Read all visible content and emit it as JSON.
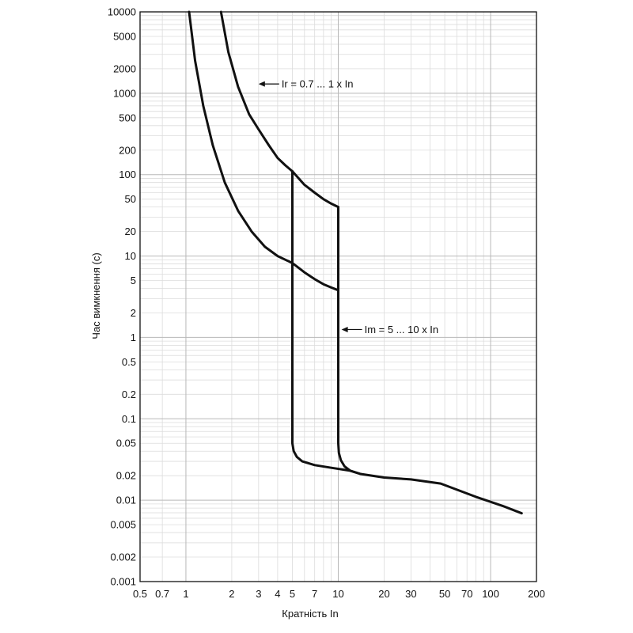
{
  "chart_data": {
    "type": "line",
    "title": "",
    "xlabel": "Кратність In",
    "ylabel": "Час вимкнення (с)",
    "x_scale": "log",
    "y_scale": "log",
    "xlim": [
      0.5,
      200
    ],
    "ylim": [
      0.001,
      10000
    ],
    "grid": true,
    "x_ticks": [
      "0.5",
      "0.7",
      "1",
      "2",
      "3",
      "4",
      "5",
      "7",
      "10",
      "20",
      "30",
      "50",
      "70",
      "100",
      "200"
    ],
    "y_ticks": [
      "10000",
      "5000",
      "2000",
      "1000",
      "500",
      "200",
      "100",
      "50",
      "20",
      "10",
      "5",
      "2",
      "1",
      "0.5",
      "0.2",
      "0.1",
      "0.05",
      "0.02",
      "0.01",
      "0.005",
      "0.002",
      "0.001"
    ],
    "series": [
      {
        "name": "",
        "x": [
          1.05,
          1.15,
          1.3,
          1.5,
          1.8,
          2.2,
          2.7,
          3.3,
          4.0,
          4.5,
          5.0,
          6.0,
          7.0,
          8.0,
          9.0,
          10.0
        ],
        "y": [
          10000,
          2500,
          700,
          230,
          80,
          36,
          20,
          13,
          10,
          9,
          8.2,
          6.3,
          5.2,
          4.5,
          4.1,
          3.8
        ]
      },
      {
        "name": "",
        "x": [
          1.7,
          1.9,
          2.2,
          2.6,
          3.0,
          3.5,
          4.0,
          4.5,
          5.0,
          6.0,
          7.0,
          8.0,
          9.0,
          10.0
        ],
        "y": [
          10000,
          3200,
          1200,
          550,
          360,
          230,
          160,
          130,
          110,
          75,
          60,
          50,
          44,
          40
        ]
      },
      {
        "name": "",
        "x": [
          5.0,
          5.0,
          5.1,
          5.35,
          5.8,
          7.0,
          9.0,
          12.0,
          14.0,
          20.0,
          30.0,
          47.0,
          80.0,
          120.0,
          160.0
        ],
        "y": [
          110,
          0.05,
          0.04,
          0.034,
          0.03,
          0.027,
          0.025,
          0.023,
          0.021,
          0.019,
          0.018,
          0.016,
          0.011,
          0.0085,
          0.0069
        ]
      },
      {
        "name": "",
        "x": [
          10.0,
          10.0,
          10.1,
          10.4,
          11.0,
          12.0,
          14.0
        ],
        "y": [
          40,
          0.05,
          0.038,
          0.031,
          0.026,
          0.023,
          0.021
        ]
      }
    ],
    "annotations": [
      {
        "text": "Ir = 0.7 ... 1 x In",
        "arrow_to_x": 3.0,
        "arrow_to_y": 1300
      },
      {
        "text": "Im = 5 ... 10 x In",
        "arrow_to_x": 10.5,
        "arrow_to_y": 1.25
      }
    ]
  }
}
